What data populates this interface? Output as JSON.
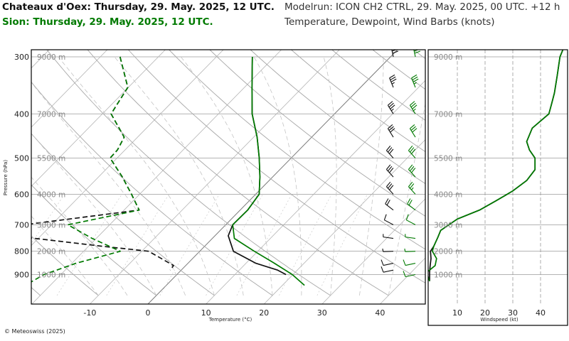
{
  "header": {
    "station1": "Chateaux d'Oex: Thursday, 29. May. 2025, 12 UTC.",
    "station2": "Sion: Thursday, 29. May. 2025, 12 UTC.",
    "model_run": "Modelrun: ICON CH2 CTRL, 29. May. 2025, 00 UTC. +12 h",
    "variables": "Temperature, Dewpoint, Wind Barbs (knots)"
  },
  "copyright": "© Meteoswiss (2025)",
  "colors": {
    "station1": "#111111",
    "station2": "#007a00",
    "grid": "#b4b4b4",
    "frame": "#000000"
  },
  "chart_data": [
    {
      "type": "line",
      "subtype": "skew-t log-p",
      "xlabel": "Temperature (°C)",
      "ylabel": "Pressure (hPa)",
      "xlim": [
        -20,
        47
      ],
      "ylim": [
        950,
        290
      ],
      "xticks": [
        "-10",
        "0",
        "10",
        "20",
        "30",
        "40"
      ],
      "yticks": [
        "300",
        "400",
        "500",
        "600",
        "700",
        "800",
        "900"
      ],
      "height_labels": [
        "9000 m",
        "7000 m",
        "5500 m",
        "4000 m",
        "3000 m",
        "2000 m",
        "1000 m"
      ],
      "height_label_pressures": [
        300,
        400,
        500,
        600,
        700,
        800,
        900
      ],
      "grid": true,
      "series": [
        {
          "station": "Chateaux d'Oex",
          "variable": "temperature",
          "style": "solid",
          "color": "#111111",
          "p": [
            300,
            350,
            400,
            450,
            500,
            550,
            600,
            650,
            700,
            740,
            800,
            850,
            880,
            900
          ],
          "t": [
            -23.8,
            -18.7,
            -14.2,
            -9.4,
            -5.5,
            -2.2,
            0.6,
            1.3,
            1.2,
            2.3,
            5.8,
            11.7,
            16.6,
            18.8
          ]
        },
        {
          "station": "Chateaux d'Oex",
          "variable": "dewpoint",
          "style": "dashed",
          "color": "#111111",
          "p": [
            300,
            350,
            400,
            450,
            480,
            500,
            550,
            600,
            650,
            700,
            740,
            780,
            800,
            860,
            880
          ],
          "t": [
            -46.6,
            -40.1,
            -38.5,
            -32.3,
            -31.3,
            -31.2,
            -25.9,
            -21.4,
            -17.4,
            -34.7,
            -34.8,
            -17.7,
            -8.8,
            -2.1,
            -1.9
          ]
        },
        {
          "station": "Sion",
          "variable": "temperature",
          "style": "solid",
          "color": "#007a00",
          "p": [
            300,
            350,
            400,
            450,
            500,
            550,
            600,
            650,
            700,
            750,
            800,
            850,
            900,
            950
          ],
          "t": [
            -23.8,
            -18.7,
            -14.2,
            -9.4,
            -5.5,
            -2.2,
            0.6,
            1.3,
            1.2,
            3.8,
            9.4,
            14.9,
            19.9,
            23.8
          ]
        },
        {
          "station": "Sion",
          "variable": "dewpoint",
          "style": "dashed",
          "color": "#007a00",
          "p": [
            300,
            350,
            400,
            450,
            480,
            500,
            550,
            600,
            650,
            700,
            750,
            800,
            850,
            900,
            950
          ],
          "t": [
            -46.6,
            -40.1,
            -38.5,
            -32.3,
            -31.3,
            -31.2,
            -25.9,
            -21.4,
            -17.4,
            -27.2,
            -20.7,
            -13.7,
            -19.3,
            -22.9,
            -24.3
          ]
        }
      ],
      "wind_barbs": [
        {
          "station": "Chateaux d'Oex",
          "color": "#111111",
          "p": [
            300,
            350,
            400,
            450,
            500,
            550,
            600,
            650,
            700,
            750,
            800,
            850,
            880
          ],
          "speed_kt": [
            40,
            35,
            35,
            30,
            30,
            30,
            30,
            20,
            10,
            5,
            5,
            10,
            10
          ],
          "direction_deg": [
            270,
            260,
            250,
            250,
            240,
            240,
            240,
            230,
            220,
            200,
            190,
            180,
            180
          ]
        },
        {
          "station": "Sion",
          "color": "#007a00",
          "p": [
            300,
            350,
            400,
            450,
            500,
            550,
            600,
            650,
            700,
            750,
            800,
            850,
            900
          ],
          "speed_kt": [
            40,
            35,
            35,
            30,
            30,
            30,
            25,
            20,
            10,
            5,
            5,
            10,
            10
          ],
          "direction_deg": [
            270,
            260,
            250,
            250,
            240,
            240,
            240,
            230,
            220,
            200,
            190,
            180,
            180
          ]
        }
      ]
    },
    {
      "type": "line",
      "subtype": "wind speed profile",
      "xlabel": "Windspeed (kt)",
      "xlim": [
        0,
        40
      ],
      "ylim": [
        950,
        290
      ],
      "xticks": [
        "10",
        "20",
        "30",
        "40"
      ],
      "height_labels": [
        "9000 m",
        "7000 m",
        "5500 m",
        "4000 m",
        "3000 m",
        "2000 m",
        "1000 m"
      ],
      "height_label_pressures": [
        300,
        400,
        500,
        600,
        700,
        800,
        900
      ],
      "grid": true,
      "series": [
        {
          "station": "Chateaux d'Oex",
          "color": "#111111",
          "p": [
            290,
            300,
            330,
            360,
            380,
            400,
            430,
            460,
            480,
            500,
            530,
            560,
            590,
            600,
            620,
            650,
            680,
            720,
            745,
            780,
            800,
            830,
            860,
            890,
            910,
            930
          ],
          "speed_kt": [
            48,
            47,
            46,
            45,
            44,
            43,
            37,
            35,
            36,
            38,
            38,
            35,
            30,
            28,
            24,
            18,
            10,
            4,
            3,
            1.5,
            0.3,
            0.5,
            0.2,
            0,
            0,
            0
          ]
        },
        {
          "station": "Sion",
          "color": "#007a00",
          "p": [
            290,
            300,
            330,
            360,
            380,
            400,
            430,
            460,
            480,
            500,
            530,
            560,
            590,
            600,
            620,
            650,
            680,
            720,
            745,
            780,
            800,
            830,
            860,
            890,
            910,
            930
          ],
          "speed_kt": [
            48,
            47,
            46,
            45,
            44,
            43,
            37,
            35,
            36,
            38,
            38,
            35,
            30,
            28,
            24,
            18,
            10,
            4,
            3,
            1.5,
            1,
            2.5,
            2,
            -1,
            -0.5,
            0
          ]
        }
      ]
    }
  ]
}
